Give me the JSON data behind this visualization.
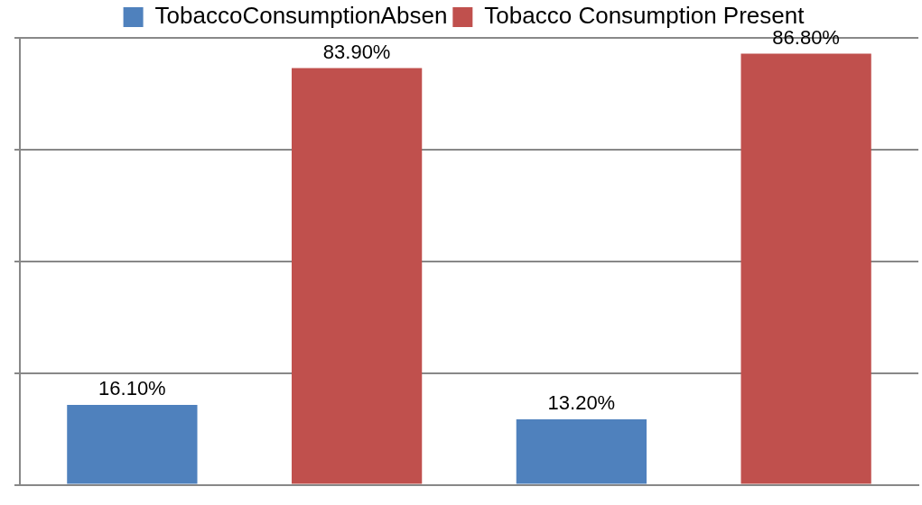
{
  "chart_data": {
    "type": "bar",
    "categories": [
      null,
      null
    ],
    "series": [
      {
        "name": "TobaccoConsumptionAbsen",
        "color": "#4f81bd",
        "values": [
          16.1,
          13.2
        ],
        "value_labels": [
          "16.10%",
          "13.20%"
        ]
      },
      {
        "name": "Tobacco Consumption Present",
        "color": "#c0504d",
        "values": [
          83.9,
          86.8
        ],
        "value_labels": [
          "83.90%",
          "86.80%"
        ]
      }
    ],
    "ylim": [
      0,
      90
    ],
    "yticks": [
      {
        "value": 0,
        "label": null
      },
      {
        "value": 22.5,
        "label": null
      },
      {
        "value": 45,
        "label": null
      },
      {
        "value": 67.5,
        "label": null
      },
      {
        "value": 90,
        "label": null
      }
    ],
    "grid": "y",
    "legend": "top"
  }
}
